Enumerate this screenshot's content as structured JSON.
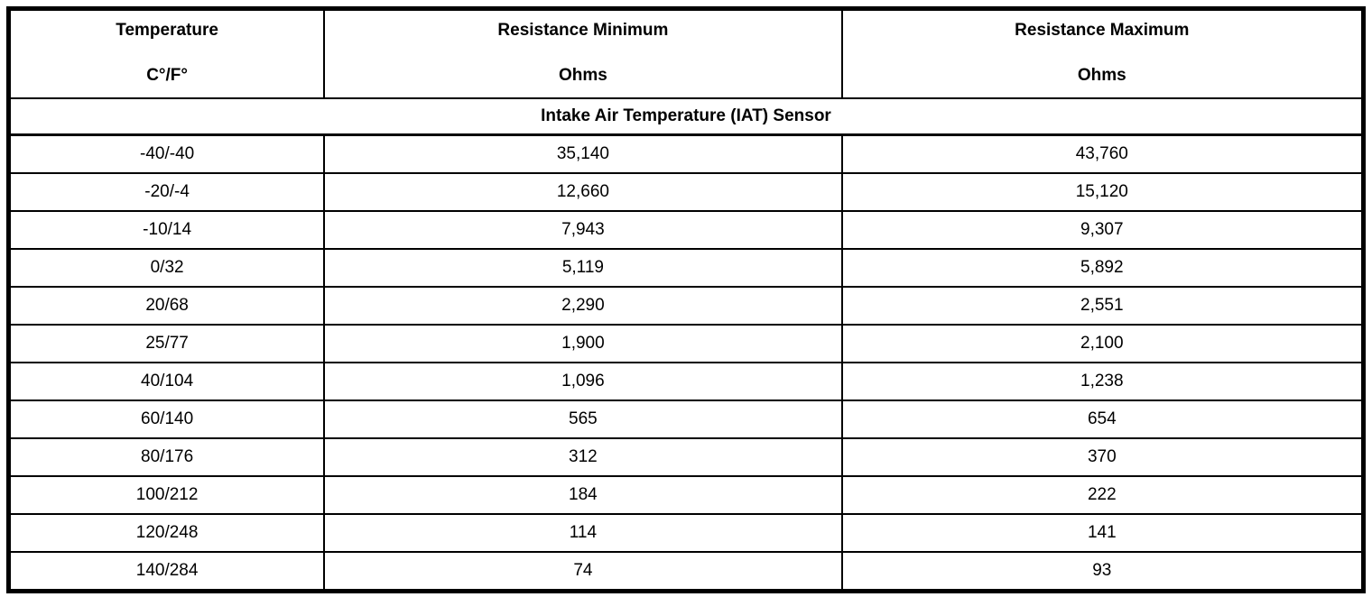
{
  "page": {
    "background_color": "#ffffff",
    "border_color": "#000000",
    "text_color": "#000000"
  },
  "table": {
    "columns": [
      {
        "title": "Temperature",
        "subtitle": "C°/F°"
      },
      {
        "title": "Resistance Minimum",
        "subtitle": "Ohms"
      },
      {
        "title": "Resistance Maximum",
        "subtitle": "Ohms"
      }
    ],
    "section_title": "Intake Air Temperature (IAT) Sensor",
    "rows": [
      [
        "-40/-40",
        "35,140",
        "43,760"
      ],
      [
        "-20/-4",
        "12,660",
        "15,120"
      ],
      [
        "-10/14",
        "7,943",
        "9,307"
      ],
      [
        "0/32",
        "5,119",
        "5,892"
      ],
      [
        "20/68",
        "2,290",
        "2,551"
      ],
      [
        "25/77",
        "1,900",
        "2,100"
      ],
      [
        "40/104",
        "1,096",
        "1,238"
      ],
      [
        "60/140",
        "565",
        "654"
      ],
      [
        "80/176",
        "312",
        "370"
      ],
      [
        "100/212",
        "184",
        "222"
      ],
      [
        "120/248",
        "114",
        "141"
      ],
      [
        "140/284",
        "74",
        "93"
      ]
    ]
  }
}
